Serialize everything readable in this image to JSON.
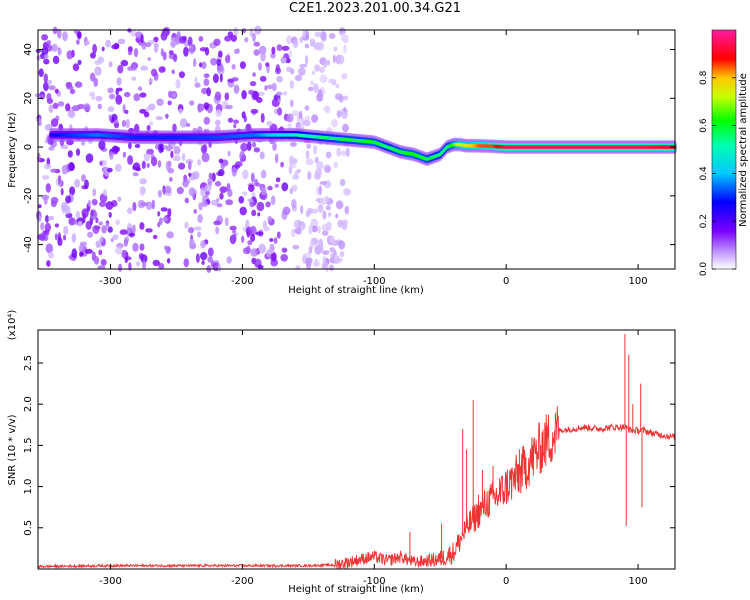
{
  "title": "C2E1.2023.201.00.34.G21",
  "chart_data": [
    {
      "type": "heatmap",
      "xlabel": "Height of straight line (km)",
      "ylabel": "Frequency (Hz)",
      "xlim": [
        -355,
        128
      ],
      "ylim": [
        -50,
        48
      ],
      "x_ticks": [
        -300,
        -200,
        -100,
        0,
        100
      ],
      "y_ticks": [
        -40,
        -20,
        0,
        20,
        40
      ],
      "colorbar": {
        "label": "Normalized spectral amplitude",
        "range": [
          0,
          1
        ],
        "ticks": [
          "0.0",
          "0.2",
          "0.4",
          "0.6",
          "0.8"
        ],
        "tick_values": [
          0,
          0.2,
          0.4,
          0.6,
          0.8
        ],
        "colormap": "white-purple-blue-cyan-green-yellow-red-magenta"
      },
      "ridge": {
        "x": [
          -345,
          -310,
          -280,
          -250,
          -220,
          -190,
          -160,
          -140,
          -120,
          -100,
          -90,
          -80,
          -70,
          -60,
          -50,
          -45,
          -40,
          -35,
          -30,
          -20,
          -10,
          0,
          50,
          100,
          128
        ],
        "freq": [
          5,
          5,
          4,
          4,
          4,
          5,
          5,
          4,
          3,
          2,
          0,
          -2,
          -3,
          -5,
          -3,
          0,
          1,
          1,
          0.5,
          0.5,
          0.3,
          0,
          0,
          0,
          0
        ],
        "amplitude": [
          0.28,
          0.35,
          0.3,
          0.3,
          0.32,
          0.35,
          0.5,
          0.55,
          0.58,
          0.6,
          0.55,
          0.6,
          0.62,
          0.58,
          0.55,
          0.55,
          0.65,
          0.75,
          0.75,
          0.85,
          0.85,
          0.95,
          0.95,
          0.95,
          0.9
        ]
      },
      "background_noise": {
        "dense_x_range": [
          -355,
          -165
        ],
        "sparse_x_range": [
          -165,
          -120
        ],
        "freq_range": [
          -50,
          48
        ]
      }
    },
    {
      "type": "line",
      "xlabel": "Height of straight line (km)",
      "ylabel": "SNR (10 * v/v)",
      "y_scale_label": "(x10⁴)",
      "xlim": [
        -355,
        128
      ],
      "ylim": [
        0,
        2.9
      ],
      "x_ticks": [
        -300,
        -200,
        -100,
        0,
        100
      ],
      "y_ticks": [
        "0.5",
        "1.0",
        "1.5",
        "2.0",
        "2.5"
      ],
      "y_tick_values": [
        0.5,
        1.0,
        1.5,
        2.0,
        2.5
      ],
      "color": "#ee3333",
      "series": [
        {
          "x": [
            -355,
            -300,
            -250,
            -200,
            -150,
            -130,
            -120,
            -110,
            -100,
            -90,
            -80,
            -70,
            -60,
            -50,
            -40,
            -35,
            -30,
            -25,
            -20,
            -15,
            -10,
            -5,
            0,
            10,
            20,
            30,
            40,
            50,
            60,
            70,
            80,
            85,
            90,
            95,
            100,
            105,
            110,
            120,
            128
          ],
          "values": [
            0.03,
            0.04,
            0.04,
            0.04,
            0.04,
            0.05,
            0.08,
            0.12,
            0.15,
            0.1,
            0.15,
            0.08,
            0.1,
            0.12,
            0.2,
            0.35,
            0.5,
            0.6,
            0.7,
            0.8,
            0.85,
            0.9,
            1.0,
            1.15,
            1.35,
            1.55,
            1.68,
            1.7,
            1.72,
            1.7,
            1.72,
            1.72,
            1.72,
            1.68,
            1.68,
            1.68,
            1.65,
            1.62,
            1.6
          ]
        }
      ],
      "spikes": [
        {
          "x": -73,
          "peak": 0.45
        },
        {
          "x": -49,
          "peak": 0.55
        },
        {
          "x": -33,
          "peak": 1.7
        },
        {
          "x": -30,
          "peak": 1.45
        },
        {
          "x": -25,
          "peak": 2.05
        },
        {
          "x": -21,
          "peak": 0.9
        },
        {
          "x": -18,
          "peak": 1.2
        },
        {
          "x": -10,
          "peak": 1.25
        },
        {
          "x": -5,
          "peak": 1.1
        },
        {
          "x": 10,
          "peak": 1.45
        },
        {
          "x": 90,
          "peak": 2.85
        },
        {
          "x": 93,
          "peak": 2.6
        },
        {
          "x": 96,
          "peak": 2.0
        },
        {
          "x": 102,
          "peak": 2.25
        }
      ],
      "dips": [
        {
          "x": 91,
          "trough": 0.52
        },
        {
          "x": 103,
          "trough": 0.75
        }
      ]
    }
  ]
}
